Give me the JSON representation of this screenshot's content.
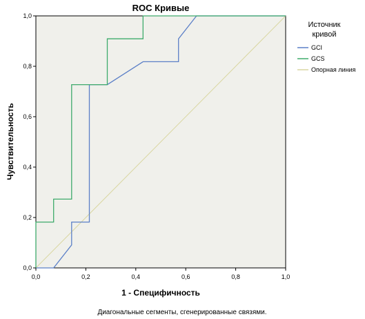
{
  "chart_data": {
    "type": "line",
    "title": "ROC Кривые",
    "xlabel": "1 - Специфичность",
    "ylabel": "Чувствительность",
    "xlim": [
      0,
      1
    ],
    "ylim": [
      0,
      1
    ],
    "x_ticks": [
      "0,0",
      "0,2",
      "0,4",
      "0,6",
      "0,8",
      "1,0"
    ],
    "y_ticks": [
      "0,0",
      "0,2",
      "0,4",
      "0,6",
      "0,8",
      "1,0"
    ],
    "x_tick_values": [
      0,
      0.2,
      0.4,
      0.6,
      0.8,
      1.0
    ],
    "y_tick_values": [
      0,
      0.2,
      0.4,
      0.6,
      0.8,
      1.0
    ],
    "grid": false,
    "legend": {
      "title": "Источник кривой",
      "title_lines": [
        "Источник",
        "кривой"
      ],
      "placement": "right"
    },
    "series": [
      {
        "name": "GCI",
        "color": "#5b7fc7",
        "x": [
          0.0,
          0.071,
          0.143,
          0.143,
          0.214,
          0.214,
          0.286,
          0.429,
          0.571,
          0.571,
          0.643,
          1.0
        ],
        "y": [
          0.0,
          0.0,
          0.091,
          0.182,
          0.182,
          0.727,
          0.727,
          0.818,
          0.818,
          0.909,
          1.0,
          1.0
        ]
      },
      {
        "name": "GCS",
        "color": "#3daa6b",
        "x": [
          0.0,
          0.0,
          0.071,
          0.071,
          0.143,
          0.143,
          0.286,
          0.286,
          0.429,
          0.429,
          1.0
        ],
        "y": [
          0.0,
          0.182,
          0.182,
          0.273,
          0.273,
          0.727,
          0.727,
          0.909,
          0.909,
          1.0,
          1.0
        ]
      },
      {
        "name": "Опорная линия",
        "color": "#d9d6a0",
        "x": [
          0,
          1
        ],
        "y": [
          0,
          1
        ]
      }
    ],
    "footnote": "Диагональные сегменты, сгенерированные связями."
  }
}
